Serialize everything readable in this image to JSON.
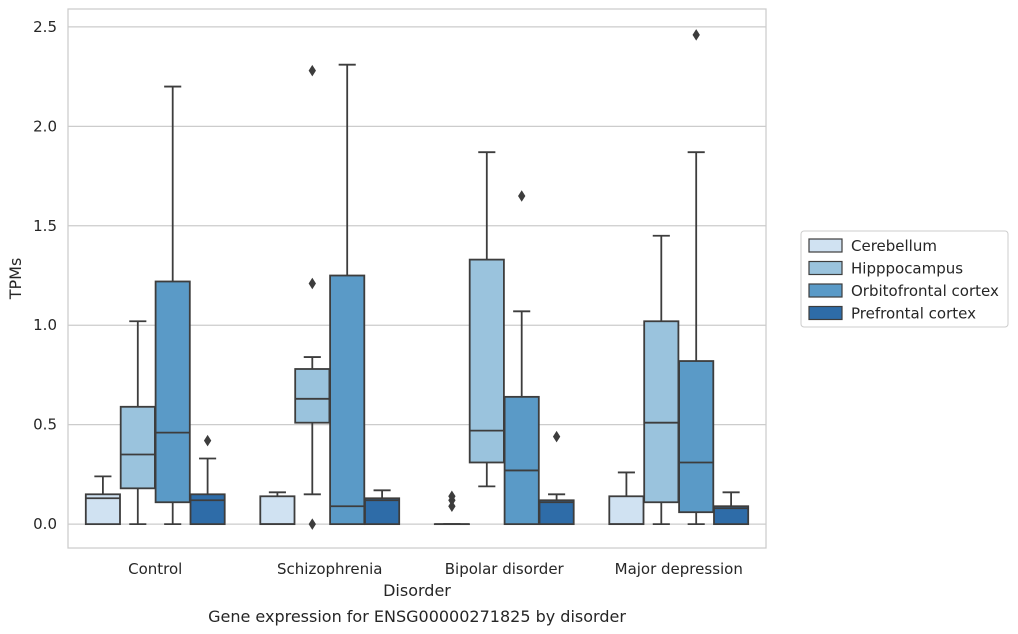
{
  "caption": "Gene expression for ENSG00000271825 by disorder",
  "chart_data": {
    "type": "box",
    "xlabel": "Disorder",
    "ylabel": "TPMs",
    "ylim": [
      -0.12,
      2.59
    ],
    "yticks": [
      "0.0",
      "0.5",
      "1.0",
      "1.5",
      "2.0",
      "2.5"
    ],
    "ytick_values": [
      0,
      0.5,
      1.0,
      1.5,
      2.0,
      2.5
    ],
    "grid": "horizontal",
    "legend_position": "right",
    "categories": [
      "Control",
      "Schizophrenia",
      "Bipolar disorder",
      "Major depression"
    ],
    "series": [
      {
        "name": "Cerebellum",
        "color": "#d0e2f2",
        "boxes": [
          {
            "whislo": 0.0,
            "q1": 0.0,
            "med": 0.13,
            "q3": 0.15,
            "whishi": 0.24,
            "fliers": []
          },
          {
            "whislo": 0.0,
            "q1": 0.0,
            "med": 0.0,
            "q3": 0.14,
            "whishi": 0.16,
            "fliers": []
          },
          {
            "whislo": 0.0,
            "q1": 0.0,
            "med": 0.0,
            "q3": 0.0,
            "whishi": 0.0,
            "fliers": [
              0.09,
              0.12,
              0.14
            ]
          },
          {
            "whislo": 0.0,
            "q1": 0.0,
            "med": 0.0,
            "q3": 0.14,
            "whishi": 0.26,
            "fliers": []
          }
        ]
      },
      {
        "name": "Hipppocampus",
        "color": "#9ac3dd",
        "boxes": [
          {
            "whislo": 0.0,
            "q1": 0.18,
            "med": 0.35,
            "q3": 0.59,
            "whishi": 1.02,
            "fliers": []
          },
          {
            "whislo": 0.15,
            "q1": 0.51,
            "med": 0.63,
            "q3": 0.78,
            "whishi": 0.84,
            "fliers": [
              0.0,
              1.21,
              2.28
            ]
          },
          {
            "whislo": 0.19,
            "q1": 0.31,
            "med": 0.47,
            "q3": 1.33,
            "whishi": 1.87,
            "fliers": []
          },
          {
            "whislo": 0.0,
            "q1": 0.11,
            "med": 0.51,
            "q3": 1.02,
            "whishi": 1.45,
            "fliers": []
          }
        ]
      },
      {
        "name": "Orbitofrontal cortex",
        "color": "#5a9ac7",
        "boxes": [
          {
            "whislo": 0.0,
            "q1": 0.11,
            "med": 0.46,
            "q3": 1.22,
            "whishi": 2.2,
            "fliers": []
          },
          {
            "whislo": 0.0,
            "q1": 0.0,
            "med": 0.09,
            "q3": 1.25,
            "whishi": 2.31,
            "fliers": []
          },
          {
            "whislo": 0.0,
            "q1": 0.0,
            "med": 0.27,
            "q3": 0.64,
            "whishi": 1.07,
            "fliers": [
              1.65
            ]
          },
          {
            "whislo": 0.0,
            "q1": 0.06,
            "med": 0.31,
            "q3": 0.82,
            "whishi": 1.87,
            "fliers": [
              2.46
            ]
          }
        ]
      },
      {
        "name": "Prefrontal cortex",
        "color": "#2e6ca8",
        "boxes": [
          {
            "whislo": 0.0,
            "q1": 0.0,
            "med": 0.12,
            "q3": 0.15,
            "whishi": 0.33,
            "fliers": [
              0.42
            ]
          },
          {
            "whislo": 0.0,
            "q1": 0.0,
            "med": 0.12,
            "q3": 0.13,
            "whishi": 0.17,
            "fliers": []
          },
          {
            "whislo": 0.0,
            "q1": 0.0,
            "med": 0.11,
            "q3": 0.12,
            "whishi": 0.15,
            "fliers": [
              0.44
            ]
          },
          {
            "whislo": 0.0,
            "q1": 0.0,
            "med": 0.08,
            "q3": 0.09,
            "whishi": 0.16,
            "fliers": []
          }
        ]
      }
    ]
  }
}
